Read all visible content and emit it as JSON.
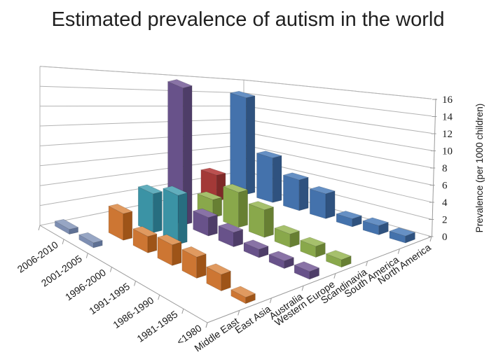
{
  "chart_data": {
    "type": "bar3d",
    "title": "Estimated prevalence of autism in the world",
    "value_axis": {
      "label": "Prevalence (per 1000 children)",
      "min": 0,
      "max": 16,
      "tick_step": 2,
      "ticks": [
        "0",
        "2",
        "4",
        "6",
        "8",
        "10",
        "12",
        "14",
        "16"
      ]
    },
    "time_categories": [
      "2006-2010",
      "2001-2005",
      "1996-2000",
      "1991-1995",
      "1986-1990",
      "1981-1985",
      "<1980"
    ],
    "region_categories": [
      "Middle East",
      "East Asia",
      "Australia",
      "Western Europe",
      "Scandinavia",
      "South America",
      "North America"
    ],
    "legend": "none",
    "grid": "on",
    "series": [
      {
        "region": "Middle East",
        "colors": {
          "main": "#7d8eb2",
          "dark": "#5e7094",
          "light": "#97a6c4"
        },
        "values": [
          0.5,
          0.5,
          null,
          null,
          null,
          null,
          null
        ]
      },
      {
        "region": "East Asia",
        "colors": {
          "main": "#cd7633",
          "dark": "#9e5418",
          "light": "#e09a60"
        },
        "values": [
          null,
          2.8,
          1.7,
          2.1,
          2.1,
          1.6,
          0.6
        ]
      },
      {
        "region": "Australia",
        "colors": {
          "main": "#3b93a5",
          "dark": "#276e80",
          "light": "#62aebd"
        },
        "values": [
          null,
          4.3,
          5.3,
          null,
          null,
          null,
          null
        ]
      },
      {
        "region": "Western Europe",
        "colors": {
          "main": "#68528a",
          "dark": "#4e3d68",
          "light": "#8973a6"
        },
        "values": [
          null,
          16,
          2.1,
          1.6,
          0.9,
          0.8,
          0.8
        ]
      },
      {
        "region": "Scandinavia",
        "colors": {
          "main": "#89a84b",
          "dark": "#677f33",
          "light": "#a6c06c"
        },
        "values": [
          null,
          2.2,
          4.2,
          3.2,
          1.5,
          1.2,
          0.8
        ]
      },
      {
        "region": "South America",
        "colors": {
          "main": "#a33937",
          "dark": "#7e2928",
          "light": "#bc5150"
        },
        "values": [
          3.5,
          null,
          null,
          null,
          null,
          null,
          null
        ]
      },
      {
        "region": "North America",
        "colors": {
          "main": "#4472ac",
          "dark": "#2f527f",
          "light": "#6690c4"
        },
        "values": [
          14,
          6.2,
          4.1,
          3.2,
          1.0,
          1.1,
          0.8
        ]
      }
    ]
  }
}
